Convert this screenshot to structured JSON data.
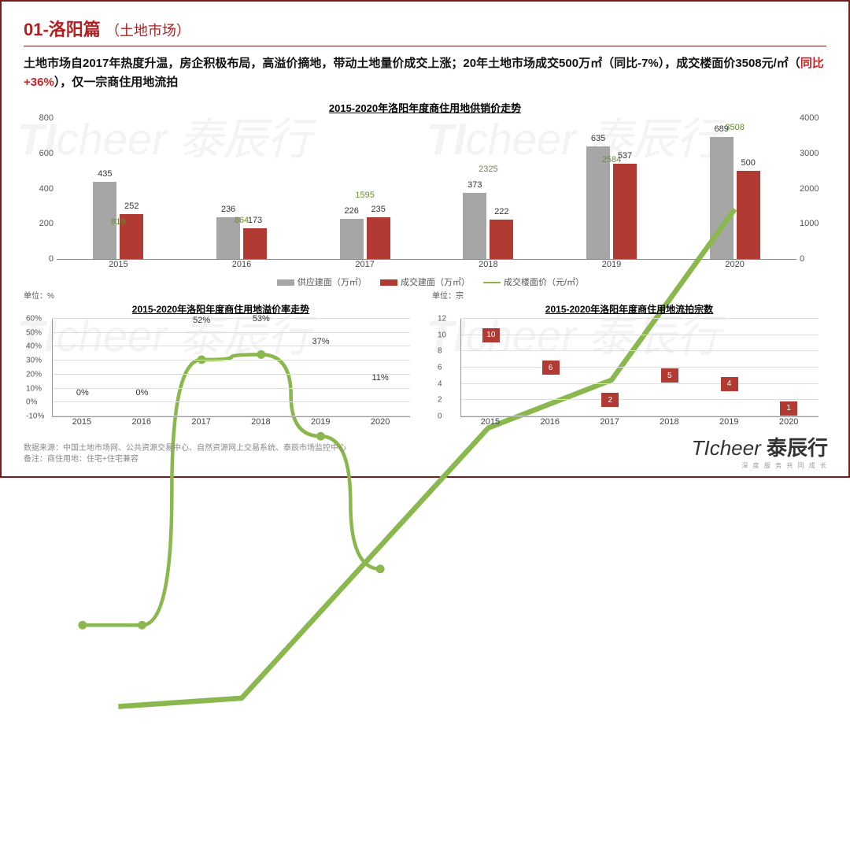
{
  "slide_title_prefix": "01-",
  "slide_title": "洛阳篇",
  "slide_subtitle": "（土地市场）",
  "summary_pre": "土地市场自2017年热度升温，房企积极布局，高溢价摘地，带动土地量价成交上涨；20年土地市场成交500万㎡（同比-7%），成交楼面价3508元/㎡（",
  "summary_highlight": "同比+36%",
  "summary_post": "），仅一宗商住用地流拍",
  "chart_main": {
    "title": "2015-2020年洛阳年度商住用地供销价走势",
    "categories": [
      "2015",
      "2016",
      "2017",
      "2018",
      "2019",
      "2020"
    ],
    "left_axis": {
      "min": 0,
      "max": 800,
      "step": 200
    },
    "right_axis": {
      "min": 0,
      "max": 4000,
      "step": 1000
    },
    "bar1": {
      "label": "供应建面（万㎡）",
      "color": "#a6a6a6",
      "values": [
        435,
        236,
        226,
        373,
        635,
        689
      ]
    },
    "bar2": {
      "label": "成交建面（万㎡）",
      "color": "#b13a33",
      "values": [
        252,
        173,
        235,
        222,
        537,
        500
      ]
    },
    "line": {
      "label": "成交楼面价（元/㎡）",
      "color": "#8bb84e",
      "values": [
        819,
        864,
        1595,
        2325,
        2584,
        3508
      ]
    }
  },
  "chart_premium": {
    "unit": "单位：%",
    "title": "2015-2020年洛阳年度商住用地溢价率走势",
    "categories": [
      "2015",
      "2016",
      "2017",
      "2018",
      "2019",
      "2020"
    ],
    "yaxis": {
      "min": -10,
      "max": 60,
      "step": 10
    },
    "line_color": "#8bb84e",
    "values": [
      0,
      0,
      52,
      53,
      37,
      11
    ],
    "labels": [
      "0%",
      "0%",
      "52%",
      "53%",
      "37%",
      "11%"
    ]
  },
  "chart_failed": {
    "unit": "单位：宗",
    "title": "2015-2020年洛阳年度商住用地流拍宗数",
    "categories": [
      "2015",
      "2016",
      "2017",
      "2018",
      "2019",
      "2020"
    ],
    "yaxis": {
      "min": 0,
      "max": 12,
      "step": 2
    },
    "marker_color": "#b13a33",
    "values": [
      10,
      6,
      2,
      5,
      4,
      1
    ]
  },
  "footer_source": "数据来源：中国土地市场网、公共资源交易中心、自然资源网上交易系统、泰辰市场监控中心",
  "footer_note": "备注：商住用地：住宅+住宅兼容",
  "brand": {
    "en": "TIcheer",
    "cn": "泰辰行",
    "tag": "深 度 服 务 共 同 成 长"
  },
  "colors": {
    "title": "#b02020",
    "text": "#111",
    "grid": "#dddddd"
  }
}
